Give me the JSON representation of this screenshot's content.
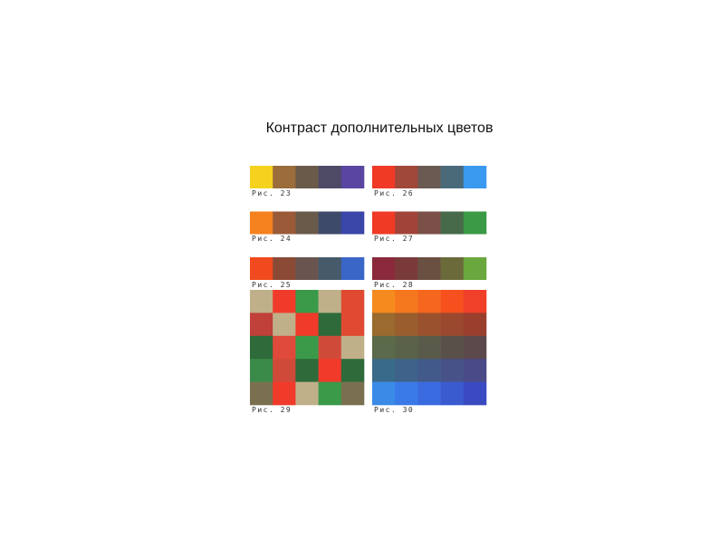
{
  "title": "Контраст дополнительных цветов",
  "figures": [
    {
      "caption": "Рис. 23"
    },
    {
      "caption": "Рис. 26"
    },
    {
      "caption": "Рис. 24"
    },
    {
      "caption": "Рис. 27"
    },
    {
      "caption": "Рис. 25"
    },
    {
      "caption": "Рис. 28"
    },
    {
      "caption": "Рис. 29"
    },
    {
      "caption": "Рис. 30"
    }
  ]
}
